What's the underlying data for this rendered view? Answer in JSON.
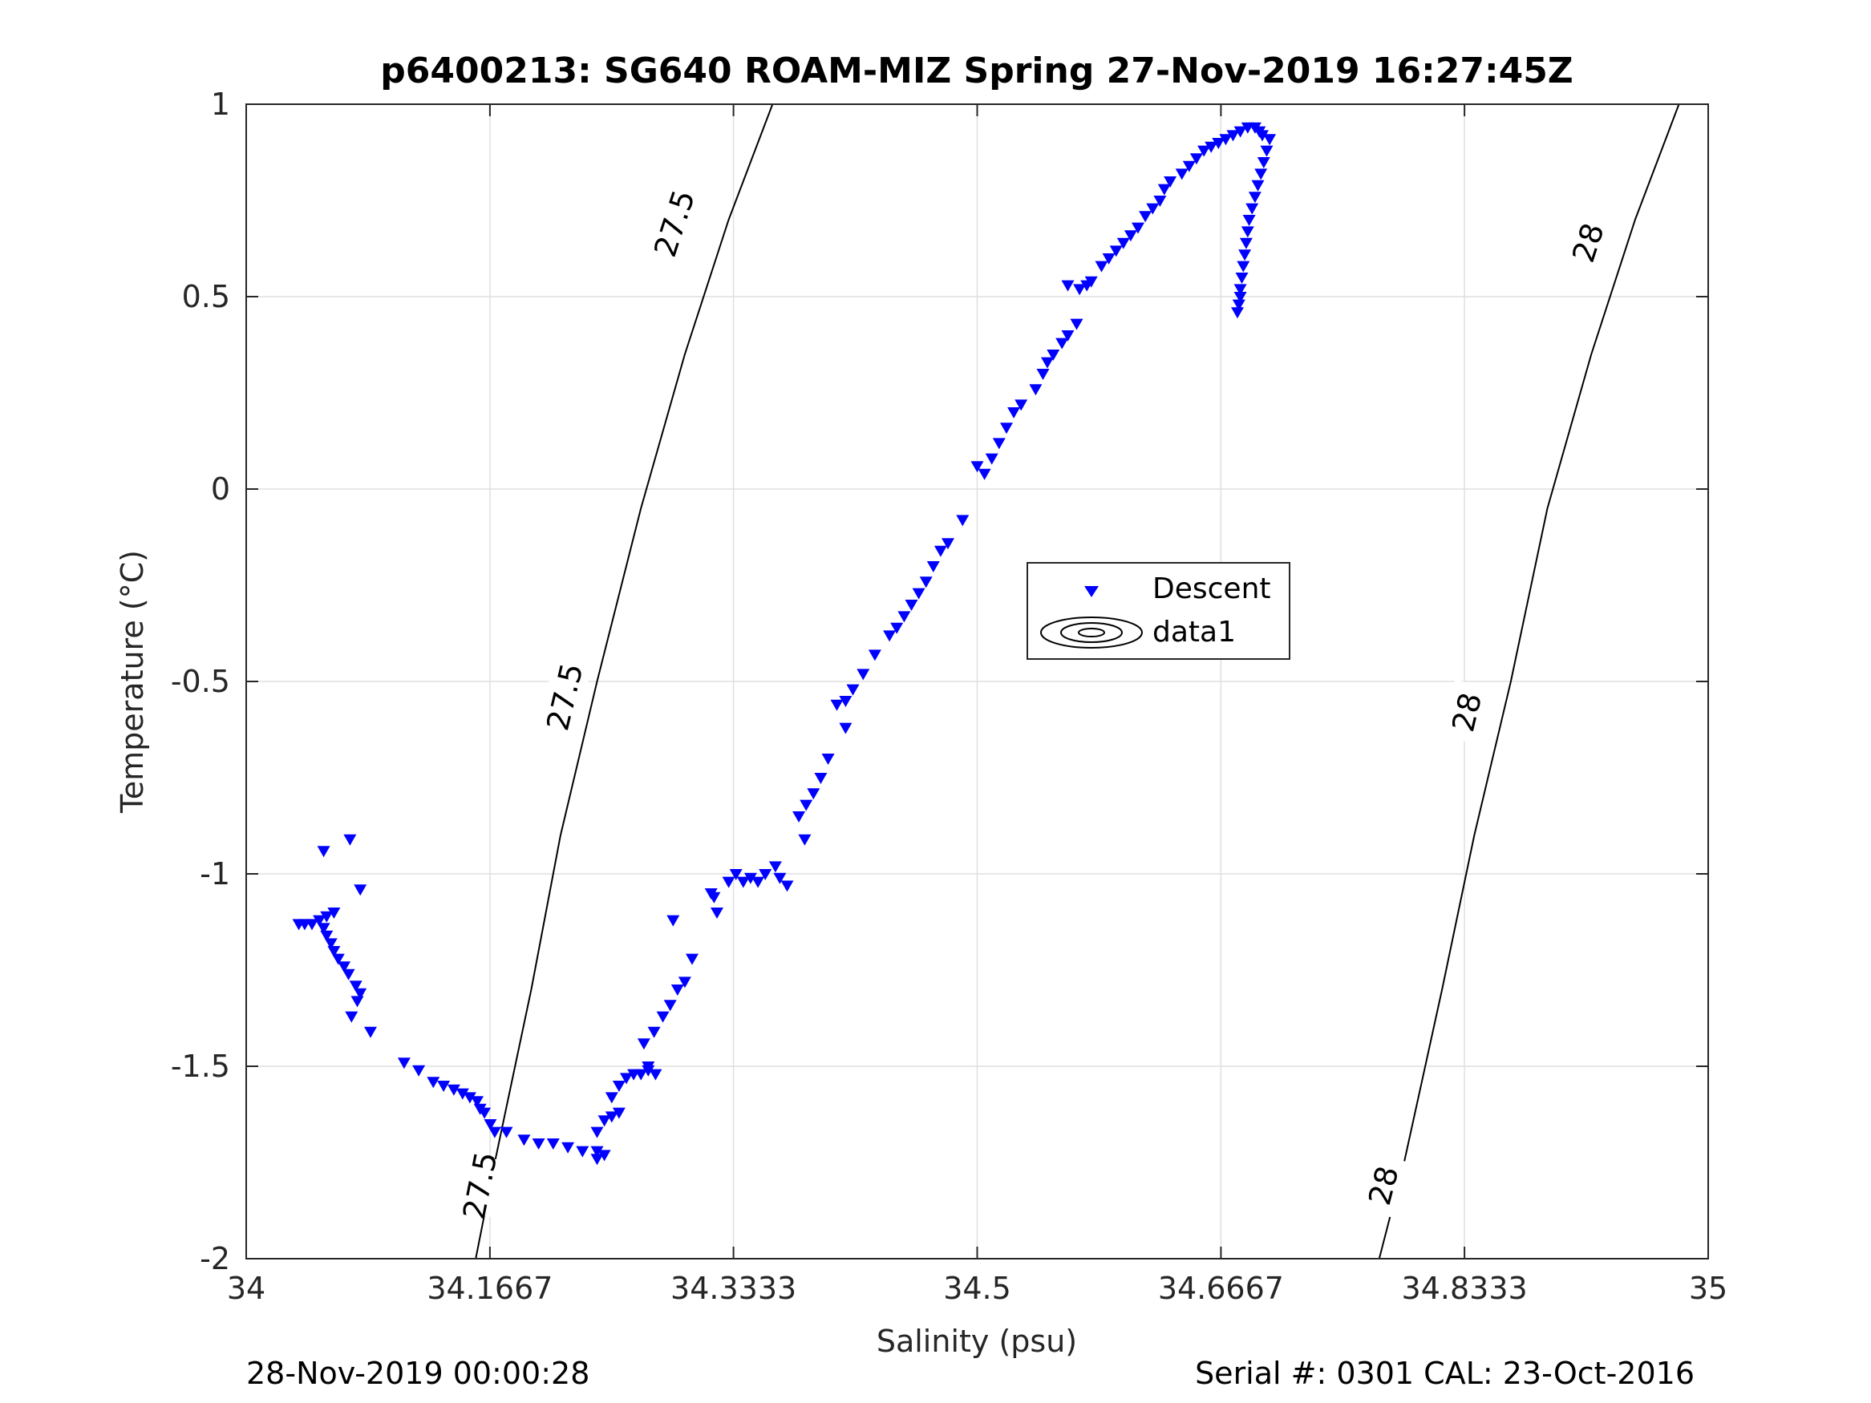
{
  "chart_data": {
    "type": "scatter",
    "title": "p6400213: SG640 ROAM-MIZ Spring 27-Nov-2019 16:27:45Z",
    "xlabel": "Salinity (psu)",
    "ylabel": "Temperature (°C)",
    "xlim": [
      34,
      35
    ],
    "ylim": [
      -2,
      1
    ],
    "x_ticks": [
      34,
      34.1667,
      34.3333,
      34.5,
      34.6667,
      34.8333,
      35
    ],
    "x_tick_labels": [
      "34",
      "34.1667",
      "34.3333",
      "34.5",
      "34.6667",
      "34.8333",
      "35"
    ],
    "y_ticks": [
      -2,
      -1.5,
      -1,
      -0.5,
      0,
      0.5,
      1
    ],
    "y_tick_labels": [
      "-2",
      "-1.5",
      "-1",
      "-0.5",
      "0",
      "0.5",
      "1"
    ],
    "grid": true,
    "legend": {
      "placement": "center-right",
      "entries": [
        "Descent",
        "data1"
      ]
    },
    "series": [
      {
        "name": "Descent",
        "marker": "triangle-down",
        "color": "#0000ff",
        "points": [
          [
            34.036,
            -1.13
          ],
          [
            34.04,
            -1.13
          ],
          [
            34.045,
            -1.13
          ],
          [
            34.05,
            -1.12
          ],
          [
            34.055,
            -1.11
          ],
          [
            34.06,
            -1.1
          ],
          [
            34.053,
            -1.14
          ],
          [
            34.055,
            -1.16
          ],
          [
            34.058,
            -1.18
          ],
          [
            34.06,
            -1.2
          ],
          [
            34.063,
            -1.22
          ],
          [
            34.067,
            -1.24
          ],
          [
            34.07,
            -1.26
          ],
          [
            34.075,
            -1.29
          ],
          [
            34.078,
            -1.31
          ],
          [
            34.076,
            -1.33
          ],
          [
            34.053,
            -0.94
          ],
          [
            34.071,
            -0.91
          ],
          [
            34.078,
            -1.04
          ],
          [
            34.072,
            -1.37
          ],
          [
            34.085,
            -1.41
          ],
          [
            34.108,
            -1.49
          ],
          [
            34.118,
            -1.51
          ],
          [
            34.128,
            -1.54
          ],
          [
            34.135,
            -1.55
          ],
          [
            34.142,
            -1.56
          ],
          [
            34.148,
            -1.57
          ],
          [
            34.153,
            -1.58
          ],
          [
            34.158,
            -1.59
          ],
          [
            34.16,
            -1.61
          ],
          [
            34.163,
            -1.62
          ],
          [
            34.167,
            -1.65
          ],
          [
            34.17,
            -1.67
          ],
          [
            34.178,
            -1.67
          ],
          [
            34.19,
            -1.69
          ],
          [
            34.2,
            -1.7
          ],
          [
            34.21,
            -1.7
          ],
          [
            34.22,
            -1.71
          ],
          [
            34.23,
            -1.72
          ],
          [
            34.24,
            -1.72
          ],
          [
            34.245,
            -1.73
          ],
          [
            34.24,
            -1.74
          ],
          [
            34.24,
            -1.67
          ],
          [
            34.245,
            -1.64
          ],
          [
            34.25,
            -1.63
          ],
          [
            34.255,
            -1.62
          ],
          [
            34.25,
            -1.58
          ],
          [
            34.255,
            -1.55
          ],
          [
            34.26,
            -1.53
          ],
          [
            34.265,
            -1.52
          ],
          [
            34.27,
            -1.52
          ],
          [
            34.275,
            -1.51
          ],
          [
            34.28,
            -1.52
          ],
          [
            34.275,
            -1.5
          ],
          [
            34.272,
            -1.44
          ],
          [
            34.279,
            -1.41
          ],
          [
            34.285,
            -1.37
          ],
          [
            34.29,
            -1.34
          ],
          [
            34.295,
            -1.3
          ],
          [
            34.3,
            -1.28
          ],
          [
            34.305,
            -1.22
          ],
          [
            34.292,
            -1.12
          ],
          [
            34.318,
            -1.05
          ],
          [
            34.32,
            -1.06
          ],
          [
            34.322,
            -1.1
          ],
          [
            34.33,
            -1.02
          ],
          [
            34.335,
            -1.0
          ],
          [
            34.34,
            -1.02
          ],
          [
            34.345,
            -1.01
          ],
          [
            34.35,
            -1.02
          ],
          [
            34.355,
            -1.0
          ],
          [
            34.365,
            -1.01
          ],
          [
            34.362,
            -0.98
          ],
          [
            34.37,
            -1.03
          ],
          [
            34.378,
            -0.85
          ],
          [
            34.383,
            -0.82
          ],
          [
            34.388,
            -0.79
          ],
          [
            34.393,
            -0.75
          ],
          [
            34.382,
            -0.91
          ],
          [
            34.398,
            -0.7
          ],
          [
            34.404,
            -0.56
          ],
          [
            34.41,
            -0.55
          ],
          [
            34.415,
            -0.52
          ],
          [
            34.41,
            -0.62
          ],
          [
            34.422,
            -0.48
          ],
          [
            34.43,
            -0.43
          ],
          [
            34.44,
            -0.38
          ],
          [
            34.445,
            -0.36
          ],
          [
            34.45,
            -0.33
          ],
          [
            34.455,
            -0.3
          ],
          [
            34.46,
            -0.27
          ],
          [
            34.465,
            -0.24
          ],
          [
            34.47,
            -0.2
          ],
          [
            34.475,
            -0.16
          ],
          [
            34.48,
            -0.14
          ],
          [
            34.49,
            -0.08
          ],
          [
            34.5,
            0.06
          ],
          [
            34.505,
            0.04
          ],
          [
            34.51,
            0.08
          ],
          [
            34.515,
            0.12
          ],
          [
            34.52,
            0.16
          ],
          [
            34.525,
            0.2
          ],
          [
            34.53,
            0.22
          ],
          [
            34.54,
            0.26
          ],
          [
            34.545,
            0.3
          ],
          [
            34.548,
            0.33
          ],
          [
            34.552,
            0.35
          ],
          [
            34.558,
            0.38
          ],
          [
            34.562,
            0.4
          ],
          [
            34.568,
            0.43
          ],
          [
            34.562,
            0.53
          ],
          [
            34.57,
            0.52
          ],
          [
            34.575,
            0.53
          ],
          [
            34.578,
            0.54
          ],
          [
            34.585,
            0.58
          ],
          [
            34.59,
            0.6
          ],
          [
            34.595,
            0.62
          ],
          [
            34.6,
            0.64
          ],
          [
            34.605,
            0.66
          ],
          [
            34.61,
            0.68
          ],
          [
            34.615,
            0.71
          ],
          [
            34.62,
            0.73
          ],
          [
            34.625,
            0.75
          ],
          [
            34.628,
            0.78
          ],
          [
            34.632,
            0.8
          ],
          [
            34.64,
            0.82
          ],
          [
            34.645,
            0.84
          ],
          [
            34.65,
            0.86
          ],
          [
            34.655,
            0.88
          ],
          [
            34.66,
            0.89
          ],
          [
            34.665,
            0.9
          ],
          [
            34.67,
            0.91
          ],
          [
            34.675,
            0.92
          ],
          [
            34.68,
            0.93
          ],
          [
            34.685,
            0.94
          ],
          [
            34.69,
            0.94
          ],
          [
            34.693,
            0.93
          ],
          [
            34.695,
            0.92
          ],
          [
            34.7,
            0.91
          ],
          [
            34.698,
            0.88
          ],
          [
            34.696,
            0.85
          ],
          [
            34.694,
            0.82
          ],
          [
            34.692,
            0.79
          ],
          [
            34.69,
            0.76
          ],
          [
            34.688,
            0.73
          ],
          [
            34.686,
            0.7
          ],
          [
            34.685,
            0.67
          ],
          [
            34.684,
            0.64
          ],
          [
            34.683,
            0.61
          ],
          [
            34.682,
            0.58
          ],
          [
            34.681,
            0.55
          ],
          [
            34.68,
            0.52
          ],
          [
            34.68,
            0.5
          ],
          [
            34.679,
            0.48
          ],
          [
            34.678,
            0.46
          ]
        ]
      }
    ],
    "contours": [
      {
        "label": "27.5",
        "color": "#000000",
        "points": [
          [
            34.157,
            -2.0
          ],
          [
            34.17,
            -1.75
          ],
          [
            34.195,
            -1.3
          ],
          [
            34.215,
            -0.9
          ],
          [
            34.24,
            -0.5
          ],
          [
            34.27,
            -0.05
          ],
          [
            34.3,
            0.35
          ],
          [
            34.33,
            0.7
          ],
          [
            34.36,
            1.0
          ]
        ],
        "label_positions": [
          [
            34.16,
            -1.81
          ],
          [
            34.218,
            -0.54
          ],
          [
            34.293,
            0.69
          ]
        ]
      },
      {
        "label": "28",
        "color": "#000000",
        "points": [
          [
            34.775,
            -2.0
          ],
          [
            34.792,
            -1.75
          ],
          [
            34.818,
            -1.3
          ],
          [
            34.84,
            -0.9
          ],
          [
            34.865,
            -0.5
          ],
          [
            34.89,
            -0.05
          ],
          [
            34.92,
            0.35
          ],
          [
            34.95,
            0.7
          ],
          [
            34.98,
            1.0
          ]
        ],
        "label_positions": [
          [
            34.778,
            -1.81
          ],
          [
            34.835,
            -0.58
          ],
          [
            34.918,
            0.64
          ]
        ]
      }
    ]
  },
  "footer": {
    "left": "28-Nov-2019 00:00:28",
    "right": "Serial #: 0301  CAL: 23-Oct-2016"
  }
}
